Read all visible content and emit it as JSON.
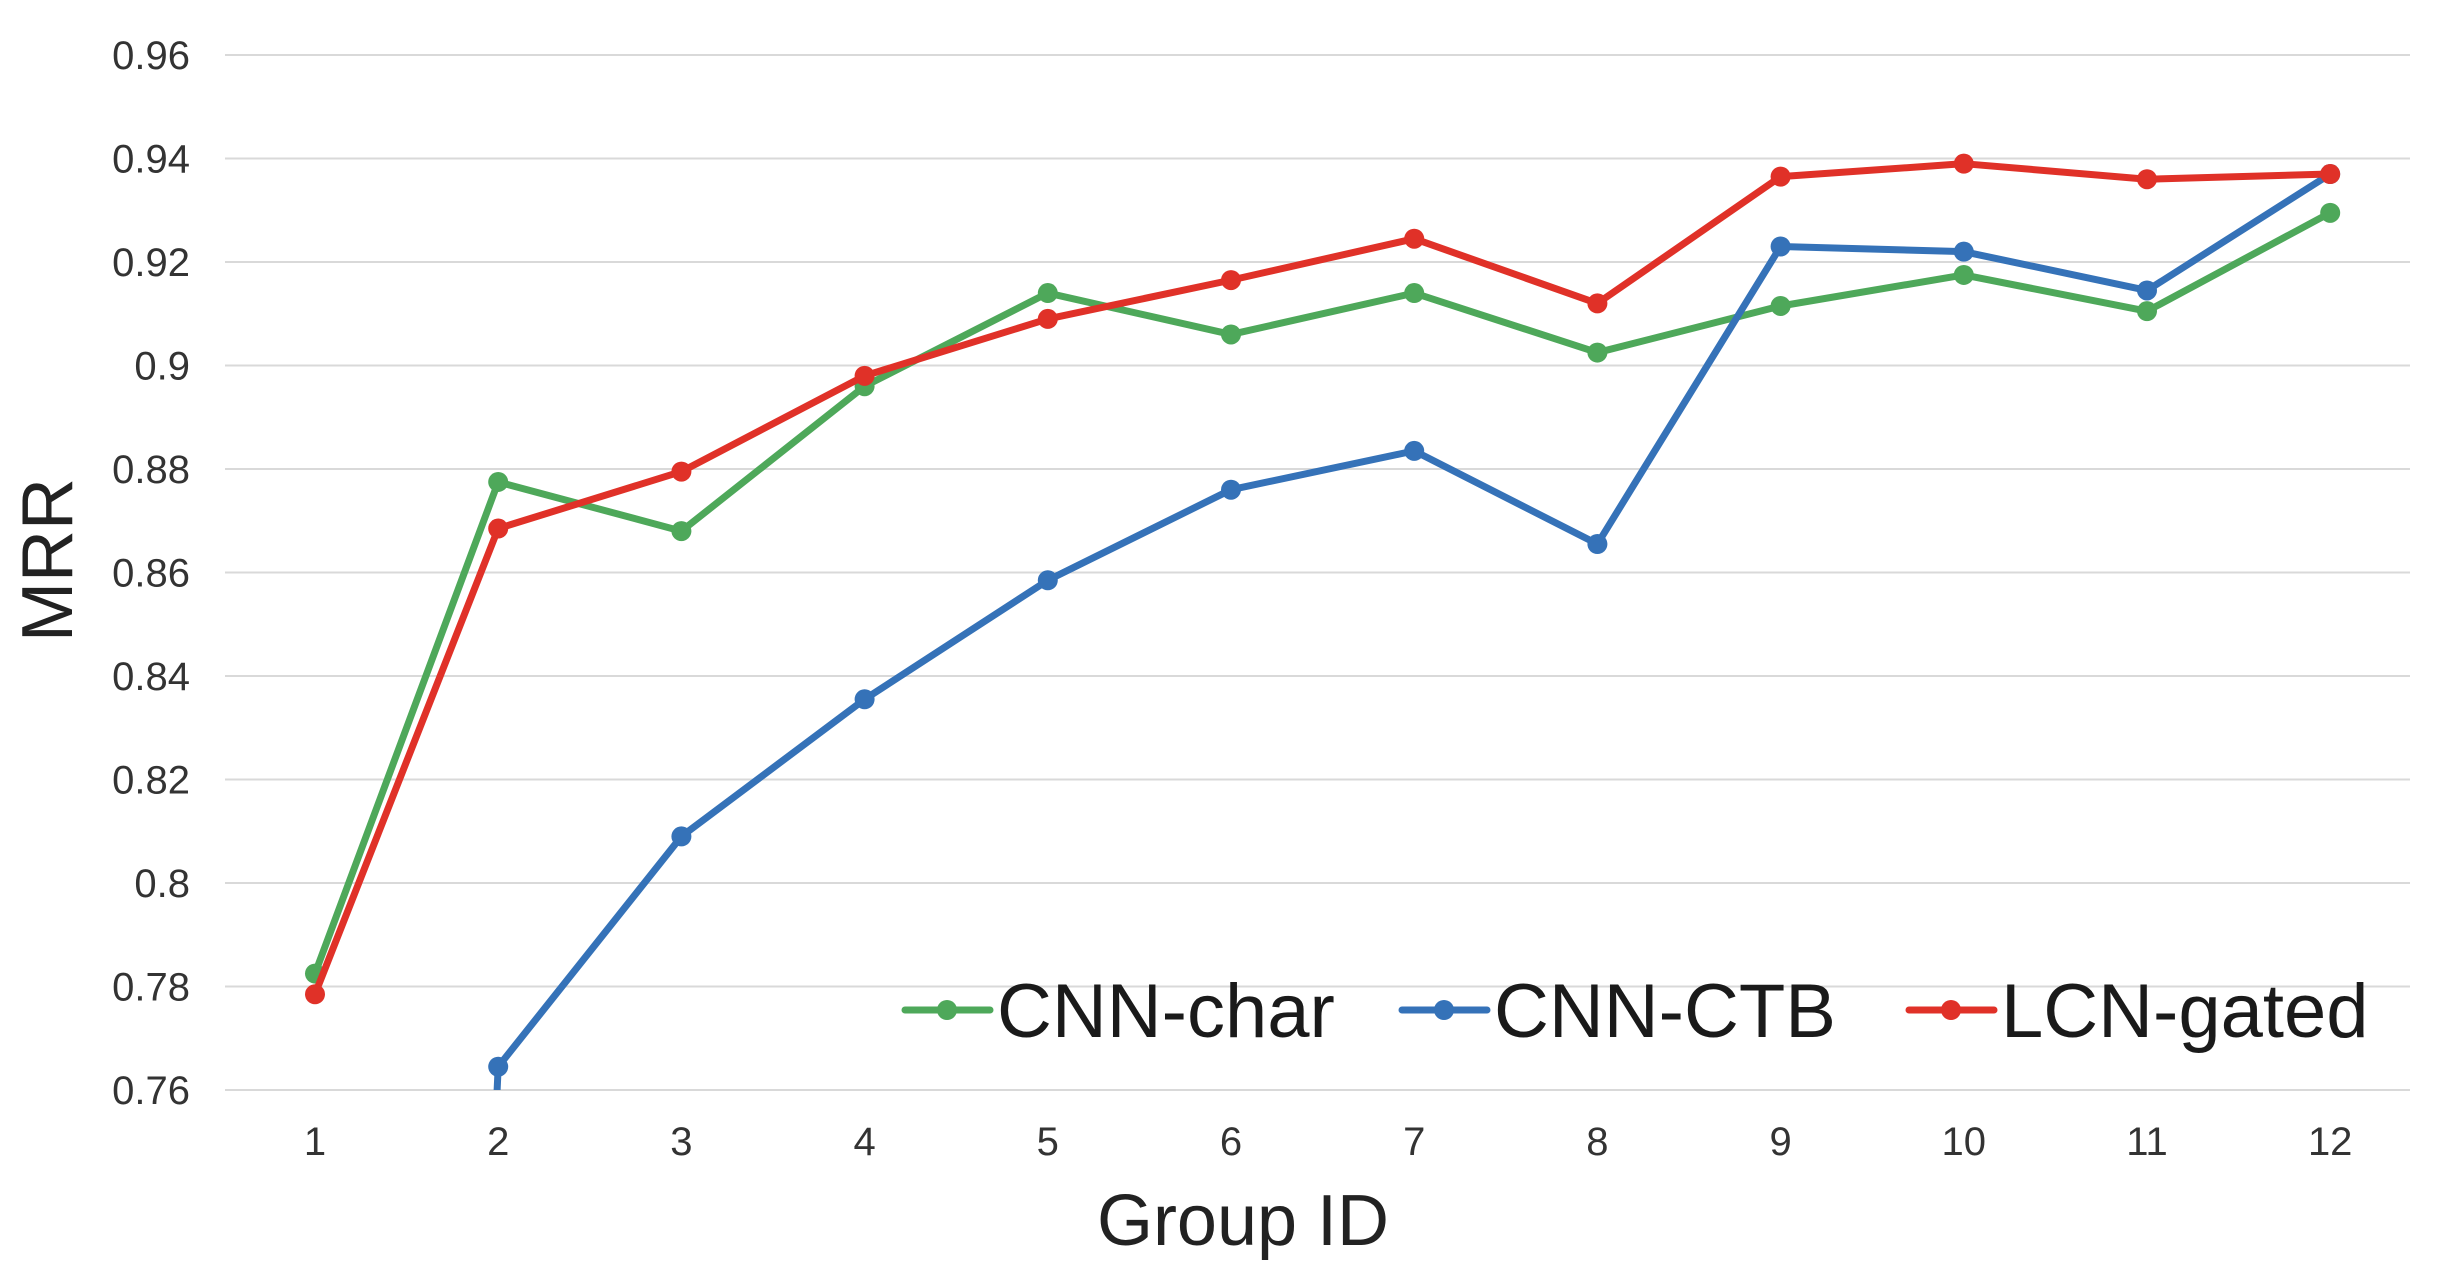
{
  "chart_data": {
    "type": "line",
    "xlabel": "Group ID",
    "ylabel": "MRR",
    "x": [
      1,
      2,
      3,
      4,
      5,
      6,
      7,
      8,
      9,
      10,
      11,
      12
    ],
    "ylim": [
      0.76,
      0.96
    ],
    "yticks": [
      "0.76",
      "0.78",
      "0.8",
      "0.82",
      "0.84",
      "0.86",
      "0.88",
      "0.9",
      "0.92",
      "0.94",
      "0.96"
    ],
    "xticks": [
      "1",
      "2",
      "3",
      "4",
      "5",
      "6",
      "7",
      "8",
      "9",
      "10",
      "11",
      "12"
    ],
    "grid": "horizontal",
    "legend_position": "bottom-right",
    "series": [
      {
        "name": "CNN-char",
        "color": "#4ea85a",
        "values": [
          0.7825,
          0.8775,
          0.868,
          0.896,
          0.914,
          0.906,
          0.914,
          0.9025,
          0.9115,
          0.9175,
          0.9105,
          0.9295
        ]
      },
      {
        "name": "CNN-CTB",
        "color": "#3572b8",
        "values": [
          null,
          0.7645,
          0.809,
          0.8355,
          0.8585,
          0.876,
          0.8835,
          0.8655,
          0.923,
          0.922,
          0.9145,
          0.937
        ]
      },
      {
        "name": "LCN-gated",
        "color": "#e03128",
        "values": [
          0.7785,
          0.8685,
          0.8795,
          0.898,
          0.909,
          0.9165,
          0.9245,
          0.912,
          0.9365,
          0.939,
          0.936,
          0.937
        ]
      }
    ]
  }
}
